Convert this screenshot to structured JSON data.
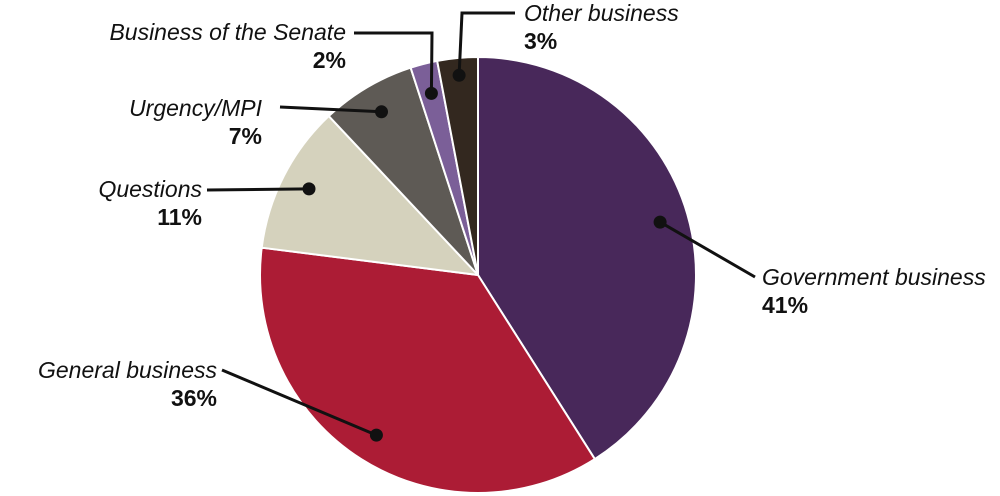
{
  "chart_data": {
    "type": "pie",
    "title": "",
    "slices": [
      {
        "label": "Government business",
        "value": 41,
        "value_label": "41%",
        "color": "#48285a"
      },
      {
        "label": "General business",
        "value": 36,
        "value_label": "36%",
        "color": "#ac1c35"
      },
      {
        "label": "Questions",
        "value": 11,
        "value_label": "11%",
        "color": "#d5d2bd"
      },
      {
        "label": "Urgency/MPI",
        "value": 7,
        "value_label": "7%",
        "color": "#5e5a55"
      },
      {
        "label": "Business of the Senate",
        "value": 2,
        "value_label": "2%",
        "color": "#7b5f98"
      },
      {
        "label": "Other business",
        "value": 3,
        "value_label": "3%",
        "color": "#33281f"
      }
    ],
    "start_angle_deg": 0,
    "direction": "clockwise"
  }
}
